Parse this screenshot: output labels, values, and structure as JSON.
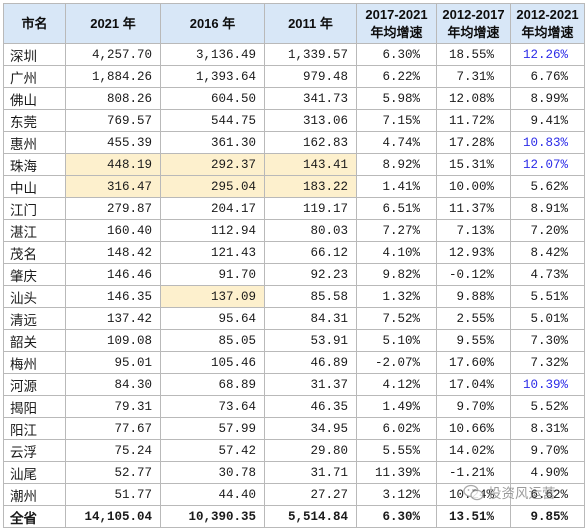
{
  "table": {
    "headers": {
      "city": "市名",
      "y2021": "2021 年",
      "y2016": "2016 年",
      "y2011": "2011 年",
      "g1721": [
        "2017-2021",
        "年均增速"
      ],
      "g1217": [
        "2012-2017",
        "年均增速"
      ],
      "g1221": [
        "2012-2021",
        "年均增速"
      ]
    },
    "rows": [
      {
        "city": "深圳",
        "y2021": "4,257.70",
        "y2016": "3,136.49",
        "y2011": "1,339.57",
        "g1721": "6.30%",
        "g1217": "18.55%",
        "g1221": "12.26%",
        "hl": [],
        "blue": [
          "g1221"
        ]
      },
      {
        "city": "广州",
        "y2021": "1,884.26",
        "y2016": "1,393.64",
        "y2011": "979.48",
        "g1721": "6.22%",
        "g1217": "7.31%",
        "g1221": "6.76%",
        "hl": [],
        "blue": []
      },
      {
        "city": "佛山",
        "y2021": "808.26",
        "y2016": "604.50",
        "y2011": "341.73",
        "g1721": "5.98%",
        "g1217": "12.08%",
        "g1221": "8.99%",
        "hl": [],
        "blue": []
      },
      {
        "city": "东莞",
        "y2021": "769.57",
        "y2016": "544.75",
        "y2011": "313.06",
        "g1721": "7.15%",
        "g1217": "11.72%",
        "g1221": "9.41%",
        "hl": [],
        "blue": []
      },
      {
        "city": "惠州",
        "y2021": "455.39",
        "y2016": "361.30",
        "y2011": "162.83",
        "g1721": "4.74%",
        "g1217": "17.28%",
        "g1221": "10.83%",
        "hl": [],
        "blue": [
          "g1221"
        ]
      },
      {
        "city": "珠海",
        "y2021": "448.19",
        "y2016": "292.37",
        "y2011": "143.41",
        "g1721": "8.92%",
        "g1217": "15.31%",
        "g1221": "12.07%",
        "hl": [
          "y2021",
          "y2016",
          "y2011"
        ],
        "blue": [
          "g1221"
        ]
      },
      {
        "city": "中山",
        "y2021": "316.47",
        "y2016": "295.04",
        "y2011": "183.22",
        "g1721": "1.41%",
        "g1217": "10.00%",
        "g1221": "5.62%",
        "hl": [
          "y2021",
          "y2016",
          "y2011"
        ],
        "blue": []
      },
      {
        "city": "江门",
        "y2021": "279.87",
        "y2016": "204.17",
        "y2011": "119.17",
        "g1721": "6.51%",
        "g1217": "11.37%",
        "g1221": "8.91%",
        "hl": [],
        "blue": []
      },
      {
        "city": "湛江",
        "y2021": "160.40",
        "y2016": "112.94",
        "y2011": "80.03",
        "g1721": "7.27%",
        "g1217": "7.13%",
        "g1221": "7.20%",
        "hl": [],
        "blue": []
      },
      {
        "city": "茂名",
        "y2021": "148.42",
        "y2016": "121.43",
        "y2011": "66.12",
        "g1721": "4.10%",
        "g1217": "12.93%",
        "g1221": "8.42%",
        "hl": [],
        "blue": []
      },
      {
        "city": "肇庆",
        "y2021": "146.46",
        "y2016": "91.70",
        "y2011": "92.23",
        "g1721": "9.82%",
        "g1217": "-0.12%",
        "g1221": "4.73%",
        "hl": [],
        "blue": []
      },
      {
        "city": "汕头",
        "y2021": "146.35",
        "y2016": "137.09",
        "y2011": "85.58",
        "g1721": "1.32%",
        "g1217": "9.88%",
        "g1221": "5.51%",
        "hl": [
          "y2016"
        ],
        "blue": []
      },
      {
        "city": "清远",
        "y2021": "137.42",
        "y2016": "95.64",
        "y2011": "84.31",
        "g1721": "7.52%",
        "g1217": "2.55%",
        "g1221": "5.01%",
        "hl": [],
        "blue": []
      },
      {
        "city": "韶关",
        "y2021": "109.08",
        "y2016": "85.05",
        "y2011": "53.91",
        "g1721": "5.10%",
        "g1217": "9.55%",
        "g1221": "7.30%",
        "hl": [],
        "blue": []
      },
      {
        "city": "梅州",
        "y2021": "95.01",
        "y2016": "105.46",
        "y2011": "46.89",
        "g1721": "-2.07%",
        "g1217": "17.60%",
        "g1221": "7.32%",
        "hl": [],
        "blue": []
      },
      {
        "city": "河源",
        "y2021": "84.30",
        "y2016": "68.89",
        "y2011": "31.37",
        "g1721": "4.12%",
        "g1217": "17.04%",
        "g1221": "10.39%",
        "hl": [],
        "blue": [
          "g1221"
        ]
      },
      {
        "city": "揭阳",
        "y2021": "79.31",
        "y2016": "73.64",
        "y2011": "46.35",
        "g1721": "1.49%",
        "g1217": "9.70%",
        "g1221": "5.52%",
        "hl": [],
        "blue": []
      },
      {
        "city": "阳江",
        "y2021": "77.67",
        "y2016": "57.99",
        "y2011": "34.95",
        "g1721": "6.02%",
        "g1217": "10.66%",
        "g1221": "8.31%",
        "hl": [],
        "blue": []
      },
      {
        "city": "云浮",
        "y2021": "75.24",
        "y2016": "57.42",
        "y2011": "29.80",
        "g1721": "5.55%",
        "g1217": "14.02%",
        "g1221": "9.70%",
        "hl": [],
        "blue": []
      },
      {
        "city": "汕尾",
        "y2021": "52.77",
        "y2016": "30.78",
        "y2011": "31.71",
        "g1721": "11.39%",
        "g1217": "-1.21%",
        "g1221": "4.90%",
        "hl": [],
        "blue": []
      },
      {
        "city": "潮州",
        "y2021": "51.77",
        "y2016": "44.40",
        "y2011": "27.27",
        "g1721": "3.12%",
        "g1217": "10.24%",
        "g1221": "6.62%",
        "hl": [],
        "blue": []
      }
    ],
    "total": {
      "city": "全省",
      "y2021": "14,105.04",
      "y2016": "10,390.35",
      "y2011": "5,514.84",
      "g1721": "6.30%",
      "g1217": "13.51%",
      "g1221": "9.85%"
    }
  },
  "watermark": {
    "text": "投资风运营",
    "icon": "wechat-icon"
  },
  "colors": {
    "header_bg": "#d8e7f7",
    "highlight_bg": "#fdf0cd",
    "blue_text": "#2c2ce8",
    "border": "#b9b9b9"
  }
}
